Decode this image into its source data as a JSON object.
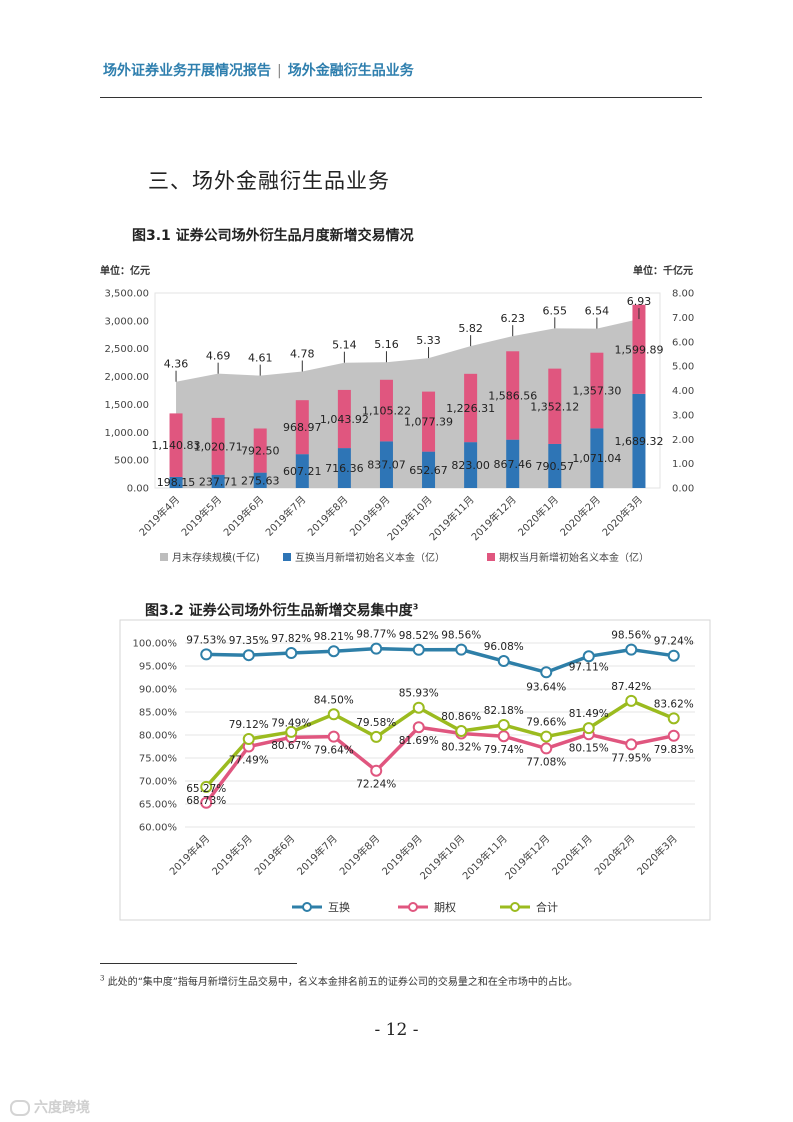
{
  "header": {
    "left": "场外证券业务开展情况报告",
    "separator": "|",
    "right": "场外金融衍生品业务"
  },
  "section_title": "三、场外金融衍生品业务",
  "figure1": {
    "title": "图3.1 证券公司场外衍生品月度新增交易情况"
  },
  "figure2": {
    "title": "图3.2 证券公司场外衍生品新增交易集中度",
    "footnote_mark": "3"
  },
  "footnote": {
    "mark": "3",
    "text": "此处的“集中度”指每月新增衍生品交易中，名义本金排名前五的证券公司的交易量之和在全市场中的占比。"
  },
  "page_number": "- 12 -",
  "watermark": "六度跨境",
  "colors": {
    "header": "#2f7fae",
    "area": "#bdbdbd",
    "swap": "#2e75b6",
    "option": "#e0567f",
    "total": "#9bbb1f",
    "swap_line": "#2e7fa8"
  },
  "chart_data": [
    {
      "type": "bar",
      "title": "图3.1 证券公司场外衍生品月度新增交易情况",
      "left_unit": "单位：亿元",
      "right_unit": "单位：千亿元",
      "categories": [
        "2019年4月",
        "2019年5月",
        "2019年6月",
        "2019年7月",
        "2019年8月",
        "2019年9月",
        "2019年10月",
        "2019年11月",
        "2019年12月",
        "2020年1月",
        "2020年2月",
        "2020年3月"
      ],
      "ylim": [
        0,
        3500
      ],
      "yticks": [
        "0.00",
        "500.00",
        "1,000.00",
        "1,500.00",
        "2,000.00",
        "2,500.00",
        "3,000.00",
        "3,500.00"
      ],
      "y2lim": [
        0,
        8
      ],
      "y2ticks": [
        "0.00",
        "1.00",
        "2.00",
        "3.00",
        "4.00",
        "5.00",
        "6.00",
        "7.00",
        "8.00"
      ],
      "stacked": true,
      "series": [
        {
          "name": "月末存续规模(千亿)",
          "kind": "area",
          "axis": "right",
          "values": [
            4.36,
            4.69,
            4.61,
            4.78,
            5.14,
            5.16,
            5.33,
            5.82,
            6.23,
            6.55,
            6.54,
            6.93
          ],
          "labels": [
            "4.36",
            "4.69",
            "4.61",
            "4.78",
            "5.14",
            "5.16",
            "5.33",
            "5.82",
            "6.23",
            "6.55",
            "6.54",
            "6.93"
          ]
        },
        {
          "name": "互换当月新增初始名义本金（亿）",
          "kind": "bar",
          "axis": "left",
          "values": [
            198.15,
            237.71,
            275.63,
            607.21,
            716.36,
            837.07,
            652.67,
            823.0,
            867.46,
            790.57,
            1071.04,
            1689.32
          ],
          "labels": [
            "198.15",
            "237.71",
            "275.63",
            "607.21",
            "716.36",
            "837.07",
            "652.67",
            "823.00",
            "867.46",
            "790.57",
            "1,071.04",
            "1,689.32"
          ]
        },
        {
          "name": "期权当月新增初始名义本金（亿）",
          "kind": "bar",
          "axis": "left",
          "values": [
            1140.83,
            1020.71,
            792.5,
            968.97,
            1043.92,
            1105.22,
            1077.39,
            1226.31,
            1586.56,
            1352.12,
            1357.3,
            1599.89
          ],
          "labels": [
            "1,140.83",
            "1,020.71",
            "792.50",
            "968.97",
            "1,043.92",
            "1,105.22",
            "1,077.39",
            "1,226.31",
            "1,586.56",
            "1,352.12",
            "1,357.30",
            "1,599.89"
          ]
        }
      ]
    },
    {
      "type": "line",
      "title": "图3.2 证券公司场外衍生品新增交易集中度",
      "categories": [
        "2019年4月",
        "2019年5月",
        "2019年6月",
        "2019年7月",
        "2019年8月",
        "2019年9月",
        "2019年10月",
        "2019年11月",
        "2019年12月",
        "2020年1月",
        "2020年2月",
        "2020年3月"
      ],
      "ylim": [
        60,
        100
      ],
      "yticks": [
        "60.00%",
        "65.00%",
        "70.00%",
        "75.00%",
        "80.00%",
        "85.00%",
        "90.00%",
        "95.00%",
        "100.00%"
      ],
      "series": [
        {
          "name": "互换",
          "values": [
            97.53,
            97.35,
            97.82,
            98.21,
            98.77,
            98.52,
            98.56,
            96.08,
            93.64,
            97.11,
            98.56,
            97.24
          ],
          "labels": [
            "97.53%",
            "97.35%",
            "97.82%",
            "98.21%",
            "98.77%",
            "98.52%",
            "98.56%",
            "96.08%",
            "93.64%",
            "97.11%",
            "98.56%",
            "97.24%"
          ]
        },
        {
          "name": "期权",
          "values": [
            65.27,
            77.49,
            79.49,
            79.64,
            72.24,
            81.69,
            80.32,
            79.74,
            77.08,
            80.15,
            77.95,
            79.83
          ],
          "labels": [
            "65.27%",
            "77.49%",
            "79.49%",
            "79.64%",
            "72.24%",
            "81.69%",
            "80.32%",
            "79.74%",
            "77.08%",
            "80.15%",
            "77.95%",
            "79.83%"
          ]
        },
        {
          "name": "合计",
          "values": [
            68.73,
            79.12,
            80.67,
            84.5,
            79.58,
            85.93,
            80.86,
            82.18,
            79.66,
            81.49,
            87.42,
            83.62
          ],
          "labels": [
            "68.73%",
            "79.12%",
            "80.67%",
            "84.50%",
            "79.58%",
            "85.93%",
            "80.86%",
            "82.18%",
            "79.66%",
            "81.49%",
            "87.42%",
            "83.62%"
          ]
        }
      ]
    }
  ]
}
